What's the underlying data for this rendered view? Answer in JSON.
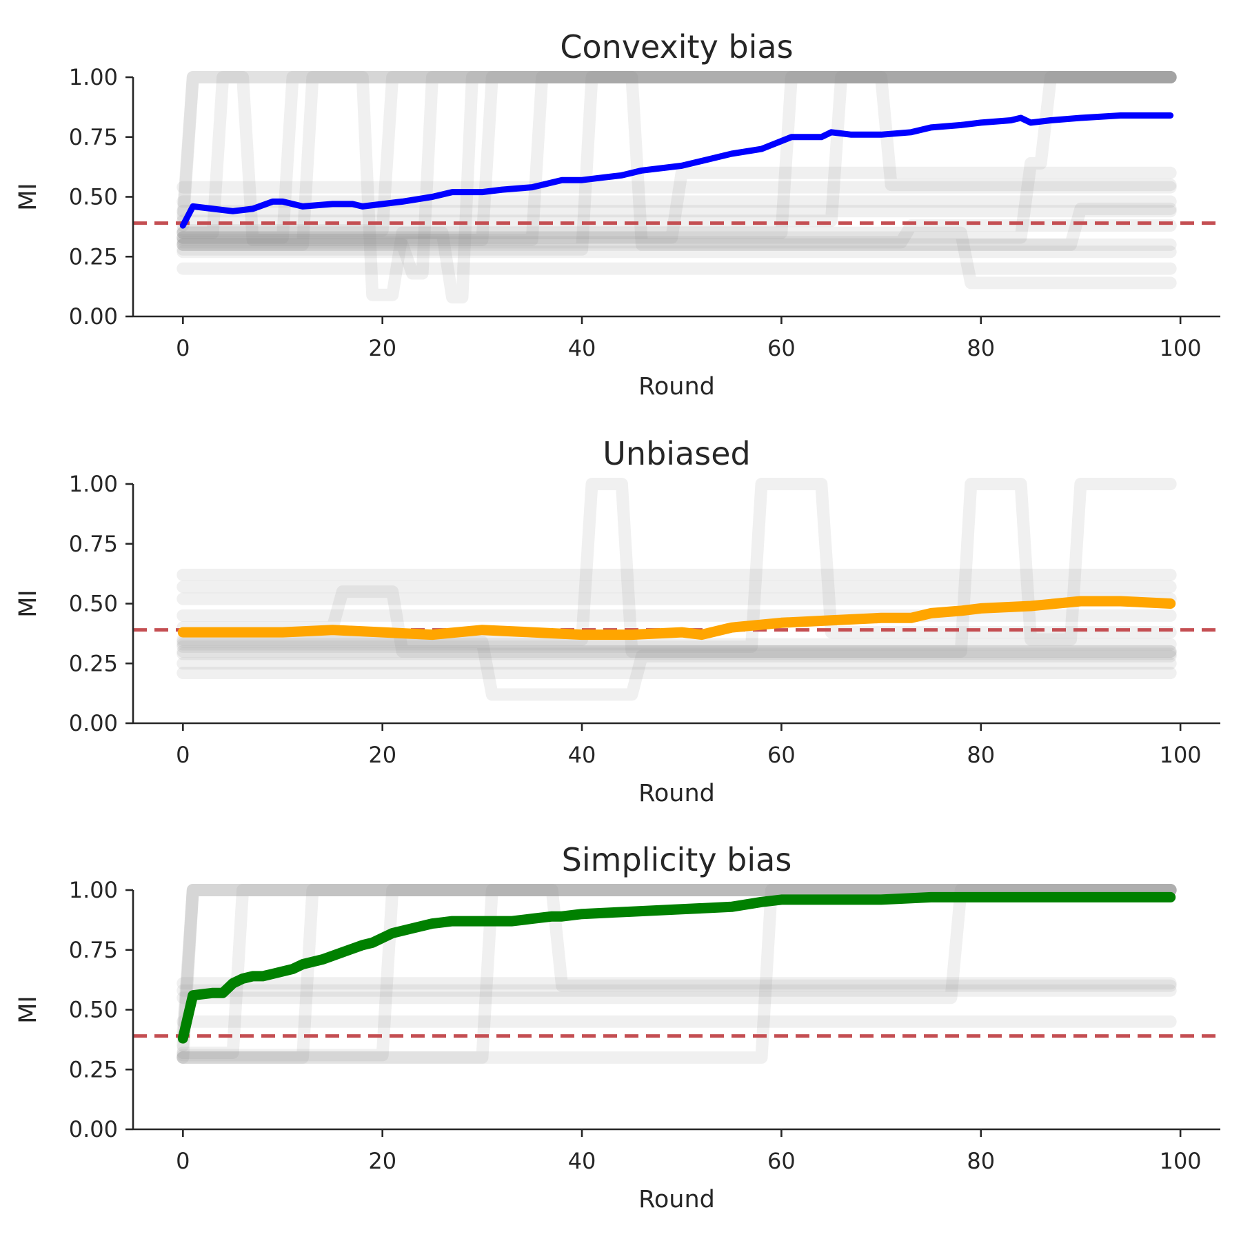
{
  "chart_data": [
    {
      "type": "line",
      "title": "Convexity bias",
      "xlabel": "Round",
      "ylabel": "MI",
      "xlim": [
        -5,
        104
      ],
      "ylim": [
        0,
        1
      ],
      "xticks": [
        "0",
        "20",
        "40",
        "60",
        "80",
        "100"
      ],
      "yticks": [
        "0.00",
        "0.25",
        "0.50",
        "0.75",
        "1.00"
      ],
      "reference_line": {
        "y": 0.39,
        "style": "dashed",
        "color": "#c44e52"
      },
      "background_runs_color": "#808080",
      "background_runs": [
        {
          "x": [
            0,
            1,
            99
          ],
          "y": [
            0.42,
            1.0,
            1.0
          ]
        },
        {
          "x": [
            0,
            1,
            99
          ],
          "y": [
            0.38,
            1.0,
            1.0
          ]
        },
        {
          "x": [
            0,
            3,
            4,
            6,
            7,
            30,
            31,
            99
          ],
          "y": [
            0.35,
            0.35,
            1.0,
            1.0,
            0.32,
            0.32,
            1.0,
            1.0
          ]
        },
        {
          "x": [
            0,
            10,
            11,
            99
          ],
          "y": [
            0.33,
            0.33,
            1.0,
            1.0
          ]
        },
        {
          "x": [
            0,
            20,
            21,
            99
          ],
          "y": [
            0.36,
            0.36,
            1.0,
            1.0
          ]
        },
        {
          "x": [
            0,
            12,
            13,
            18,
            19,
            21,
            22,
            26,
            27,
            28,
            29,
            99
          ],
          "y": [
            0.3,
            0.3,
            1.0,
            1.0,
            0.09,
            0.09,
            0.35,
            0.35,
            0.08,
            0.08,
            1.0,
            1.0
          ]
        },
        {
          "x": [
            0,
            22,
            23,
            24,
            25,
            99
          ],
          "y": [
            0.3,
            0.3,
            0.18,
            0.18,
            1.0,
            1.0
          ]
        },
        {
          "x": [
            0,
            35,
            36,
            99
          ],
          "y": [
            0.32,
            0.32,
            1.0,
            1.0
          ]
        },
        {
          "x": [
            0,
            40,
            41,
            45,
            46,
            99
          ],
          "y": [
            0.28,
            0.28,
            1.0,
            1.0,
            0.3,
            0.3
          ]
        },
        {
          "x": [
            0,
            60,
            61,
            99
          ],
          "y": [
            0.35,
            0.35,
            1.0,
            1.0
          ]
        },
        {
          "x": [
            0,
            65,
            66,
            70,
            71,
            99
          ],
          "y": [
            0.4,
            0.4,
            1.0,
            1.0,
            0.55,
            0.55
          ]
        },
        {
          "x": [
            0,
            84,
            85,
            86,
            87,
            99
          ],
          "y": [
            0.33,
            0.33,
            0.64,
            0.64,
            1.0,
            1.0
          ]
        },
        {
          "x": [
            0,
            78,
            79,
            99
          ],
          "y": [
            0.35,
            0.35,
            0.14,
            0.14
          ]
        },
        {
          "x": [
            0,
            89,
            90,
            99
          ],
          "y": [
            0.3,
            0.3,
            0.45,
            0.45
          ]
        },
        {
          "x": [
            0,
            49,
            50,
            99
          ],
          "y": [
            0.33,
            0.33,
            0.6,
            0.6
          ]
        },
        {
          "x": [
            0,
            72,
            73,
            99
          ],
          "y": [
            0.31,
            0.31,
            0.38,
            0.38
          ]
        },
        {
          "x": [
            0,
            99
          ],
          "y": [
            0.27,
            0.27
          ]
        },
        {
          "x": [
            0,
            99
          ],
          "y": [
            0.54,
            0.54
          ]
        },
        {
          "x": [
            0,
            99
          ],
          "y": [
            0.48,
            0.48
          ]
        },
        {
          "x": [
            0,
            99
          ],
          "y": [
            0.44,
            0.44
          ]
        },
        {
          "x": [
            0,
            99
          ],
          "y": [
            0.2,
            0.2
          ]
        }
      ],
      "series": [
        {
          "color": "#0000ff",
          "x": [
            0,
            1,
            5,
            7,
            9,
            10,
            12,
            15,
            17,
            18,
            20,
            22,
            25,
            27,
            30,
            32,
            35,
            38,
            40,
            42,
            44,
            46,
            50,
            53,
            55,
            58,
            61,
            64,
            65,
            67,
            70,
            73,
            75,
            78,
            80,
            83,
            84,
            85,
            87,
            90,
            94,
            99
          ],
          "y": [
            0.38,
            0.46,
            0.44,
            0.45,
            0.48,
            0.48,
            0.46,
            0.47,
            0.47,
            0.46,
            0.47,
            0.48,
            0.5,
            0.52,
            0.52,
            0.53,
            0.54,
            0.57,
            0.57,
            0.58,
            0.59,
            0.61,
            0.63,
            0.66,
            0.68,
            0.7,
            0.75,
            0.75,
            0.77,
            0.76,
            0.76,
            0.77,
            0.79,
            0.8,
            0.81,
            0.82,
            0.83,
            0.81,
            0.82,
            0.83,
            0.84,
            0.84
          ]
        }
      ]
    },
    {
      "type": "line",
      "title": "Unbiased",
      "xlabel": "Round",
      "ylabel": "MI",
      "xlim": [
        -5,
        104
      ],
      "ylim": [
        0,
        1
      ],
      "xticks": [
        "0",
        "20",
        "40",
        "60",
        "80",
        "100"
      ],
      "yticks": [
        "0.00",
        "0.25",
        "0.50",
        "0.75",
        "1.00"
      ],
      "reference_line": {
        "y": 0.39,
        "style": "dashed",
        "color": "#c44e52"
      },
      "background_runs_color": "#808080",
      "background_runs": [
        {
          "x": [
            0,
            40,
            41,
            44,
            45,
            99
          ],
          "y": [
            0.35,
            0.35,
            1.0,
            1.0,
            0.3,
            0.3
          ]
        },
        {
          "x": [
            0,
            57,
            58,
            64,
            65,
            99
          ],
          "y": [
            0.32,
            0.32,
            1.0,
            1.0,
            0.38,
            0.38
          ]
        },
        {
          "x": [
            0,
            78,
            79,
            84,
            85,
            89,
            90,
            99
          ],
          "y": [
            0.3,
            0.3,
            1.0,
            1.0,
            0.35,
            0.35,
            1.0,
            1.0
          ]
        },
        {
          "x": [
            0,
            30,
            31,
            45,
            46,
            99
          ],
          "y": [
            0.34,
            0.34,
            0.12,
            0.12,
            0.28,
            0.28
          ]
        },
        {
          "x": [
            0,
            15,
            16,
            21,
            22,
            99
          ],
          "y": [
            0.4,
            0.4,
            0.55,
            0.55,
            0.3,
            0.3
          ]
        },
        {
          "x": [
            0,
            99
          ],
          "y": [
            0.62,
            0.62
          ]
        },
        {
          "x": [
            0,
            99
          ],
          "y": [
            0.57,
            0.57
          ]
        },
        {
          "x": [
            0,
            99
          ],
          "y": [
            0.52,
            0.52
          ]
        },
        {
          "x": [
            0,
            99
          ],
          "y": [
            0.45,
            0.45
          ]
        },
        {
          "x": [
            0,
            99
          ],
          "y": [
            0.33,
            0.33
          ]
        },
        {
          "x": [
            0,
            99
          ],
          "y": [
            0.29,
            0.29
          ]
        },
        {
          "x": [
            0,
            99
          ],
          "y": [
            0.25,
            0.25
          ]
        },
        {
          "x": [
            0,
            99
          ],
          "y": [
            0.21,
            0.21
          ]
        }
      ],
      "series": [
        {
          "color": "#ffa500",
          "x": [
            0,
            10,
            15,
            20,
            25,
            30,
            35,
            40,
            45,
            50,
            52,
            55,
            60,
            65,
            70,
            73,
            75,
            78,
            80,
            85,
            90,
            94,
            99
          ],
          "y": [
            0.38,
            0.38,
            0.39,
            0.38,
            0.37,
            0.39,
            0.38,
            0.37,
            0.37,
            0.38,
            0.37,
            0.4,
            0.42,
            0.43,
            0.44,
            0.44,
            0.46,
            0.47,
            0.48,
            0.49,
            0.51,
            0.51,
            0.5
          ]
        }
      ]
    },
    {
      "type": "line",
      "title": "Simplicity bias",
      "xlabel": "Round",
      "ylabel": "MI",
      "xlim": [
        -5,
        104
      ],
      "ylim": [
        0,
        1
      ],
      "xticks": [
        "0",
        "20",
        "40",
        "60",
        "80",
        "100"
      ],
      "yticks": [
        "0.00",
        "0.25",
        "0.50",
        "0.75",
        "1.00"
      ],
      "reference_line": {
        "y": 0.39,
        "style": "dashed",
        "color": "#c44e52"
      },
      "background_runs_color": "#808080",
      "background_runs": [
        {
          "x": [
            0,
            1,
            99
          ],
          "y": [
            0.4,
            1.0,
            1.0
          ]
        },
        {
          "x": [
            0,
            1,
            99
          ],
          "y": [
            0.35,
            1.0,
            1.0
          ]
        },
        {
          "x": [
            0,
            1,
            99
          ],
          "y": [
            0.3,
            1.0,
            1.0
          ]
        },
        {
          "x": [
            0,
            5,
            6,
            99
          ],
          "y": [
            0.32,
            0.32,
            1.0,
            1.0
          ]
        },
        {
          "x": [
            0,
            12,
            13,
            99
          ],
          "y": [
            0.3,
            0.3,
            1.0,
            1.0
          ]
        },
        {
          "x": [
            0,
            20,
            21,
            99
          ],
          "y": [
            0.31,
            0.31,
            1.0,
            1.0
          ]
        },
        {
          "x": [
            0,
            30,
            31,
            37,
            38,
            99
          ],
          "y": [
            0.3,
            0.3,
            1.0,
            1.0,
            0.6,
            0.6
          ]
        },
        {
          "x": [
            0,
            58,
            59,
            99
          ],
          "y": [
            0.3,
            0.3,
            1.0,
            1.0
          ]
        },
        {
          "x": [
            0,
            77,
            78,
            99
          ],
          "y": [
            0.55,
            0.55,
            1.0,
            1.0
          ]
        },
        {
          "x": [
            0,
            99
          ],
          "y": [
            0.61,
            0.61
          ]
        },
        {
          "x": [
            0,
            99
          ],
          "y": [
            0.58,
            0.58
          ]
        },
        {
          "x": [
            0,
            99
          ],
          "y": [
            0.45,
            0.45
          ]
        }
      ],
      "series": [
        {
          "color": "#008000",
          "x": [
            0,
            1,
            3,
            4,
            5,
            6,
            7,
            8,
            9,
            10,
            11,
            12,
            14,
            16,
            18,
            19,
            20,
            21,
            23,
            25,
            27,
            30,
            33,
            35,
            37,
            38,
            40,
            45,
            50,
            55,
            58,
            60,
            65,
            70,
            75,
            80,
            85,
            90,
            99
          ],
          "y": [
            0.38,
            0.56,
            0.57,
            0.57,
            0.61,
            0.63,
            0.64,
            0.64,
            0.65,
            0.66,
            0.67,
            0.69,
            0.71,
            0.74,
            0.77,
            0.78,
            0.8,
            0.82,
            0.84,
            0.86,
            0.87,
            0.87,
            0.87,
            0.88,
            0.89,
            0.89,
            0.9,
            0.91,
            0.92,
            0.93,
            0.95,
            0.96,
            0.96,
            0.96,
            0.97,
            0.97,
            0.97,
            0.97,
            0.97
          ]
        }
      ]
    }
  ]
}
